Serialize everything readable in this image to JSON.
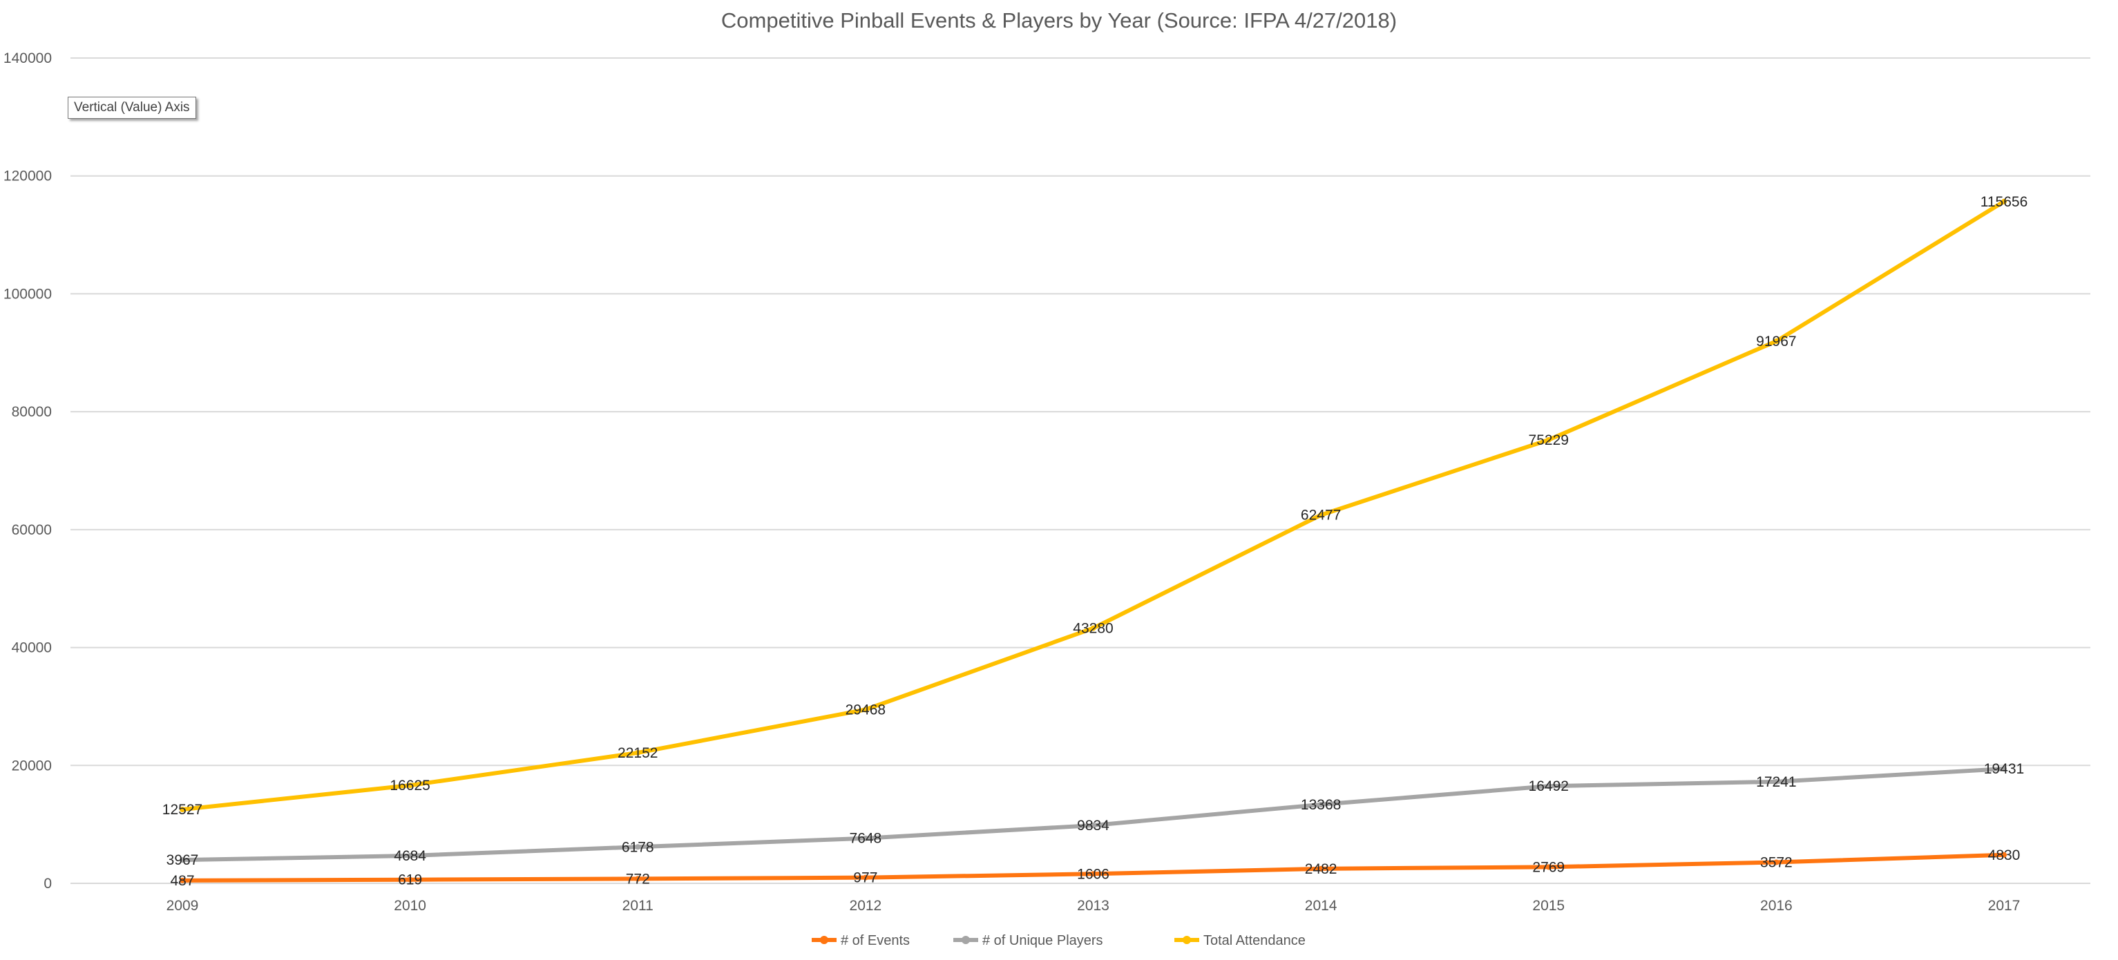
{
  "chart_data": {
    "type": "line",
    "title": "Competitive Pinball Events & Players by Year (Source: IFPA 4/27/2018)",
    "xlabel": "",
    "ylabel": "",
    "categories": [
      "2009",
      "2010",
      "2011",
      "2012",
      "2013",
      "2014",
      "2015",
      "2016",
      "2017"
    ],
    "ylim": [
      0,
      140000
    ],
    "yticks": [
      0,
      20000,
      40000,
      60000,
      80000,
      100000,
      120000,
      140000
    ],
    "grid": true,
    "legend_position": "bottom",
    "data_labels": true,
    "series": [
      {
        "name": "# of Events",
        "color": "#FF7510",
        "values": [
          487,
          619,
          772,
          977,
          1606,
          2482,
          2769,
          3572,
          4830
        ]
      },
      {
        "name": "# of Unique Players",
        "color": "#A5A5A5",
        "values": [
          3967,
          4684,
          6178,
          7648,
          9834,
          13368,
          16492,
          17241,
          19431
        ]
      },
      {
        "name": "Total Attendance",
        "color": "#FFC000",
        "values": [
          12527,
          16625,
          22152,
          29468,
          43280,
          62477,
          75229,
          91967,
          115656
        ]
      }
    ]
  },
  "tooltip": "Vertical (Value) Axis"
}
